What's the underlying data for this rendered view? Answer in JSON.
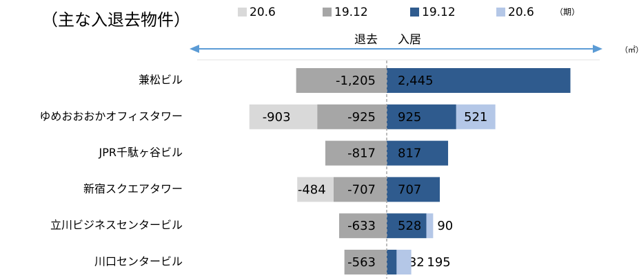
{
  "chart_data": {
    "type": "diverging-stacked-bar",
    "title": "（主な入退去物件）",
    "legend_note": "（期）",
    "left_label": "退去",
    "right_label": "入居",
    "unit": "（㎡）",
    "categories": [
      "兼松ビル",
      "ゆめおおおかオフィスタワー",
      "JPR千駄ヶ谷ビル",
      "新宿スクエアタワー",
      "立川ビジネスセンタービル",
      "川口センタービル"
    ],
    "xlim": [
      -2000,
      3000
    ],
    "series": [
      {
        "name": "20.6",
        "color": "#d9d9d9",
        "values": [
          null,
          -903,
          null,
          -484,
          null,
          null
        ]
      },
      {
        "name": "19.12",
        "color": "#a6a6a6",
        "values": [
          -1205,
          -925,
          -817,
          -707,
          -633,
          -563
        ],
        "value_labels": [
          "-1,205",
          "-925",
          "-817",
          "-707",
          "-633",
          "-563"
        ]
      },
      {
        "name": "19.12",
        "color": "#2f5b8e",
        "values": [
          2445,
          925,
          817,
          707,
          528,
          132
        ],
        "value_labels": [
          "2,445",
          "925",
          "817",
          "707",
          "528",
          "132"
        ]
      },
      {
        "name": "20.6",
        "color": "#b4c7e7",
        "values": [
          null,
          521,
          null,
          null,
          90,
          195
        ]
      }
    ]
  }
}
